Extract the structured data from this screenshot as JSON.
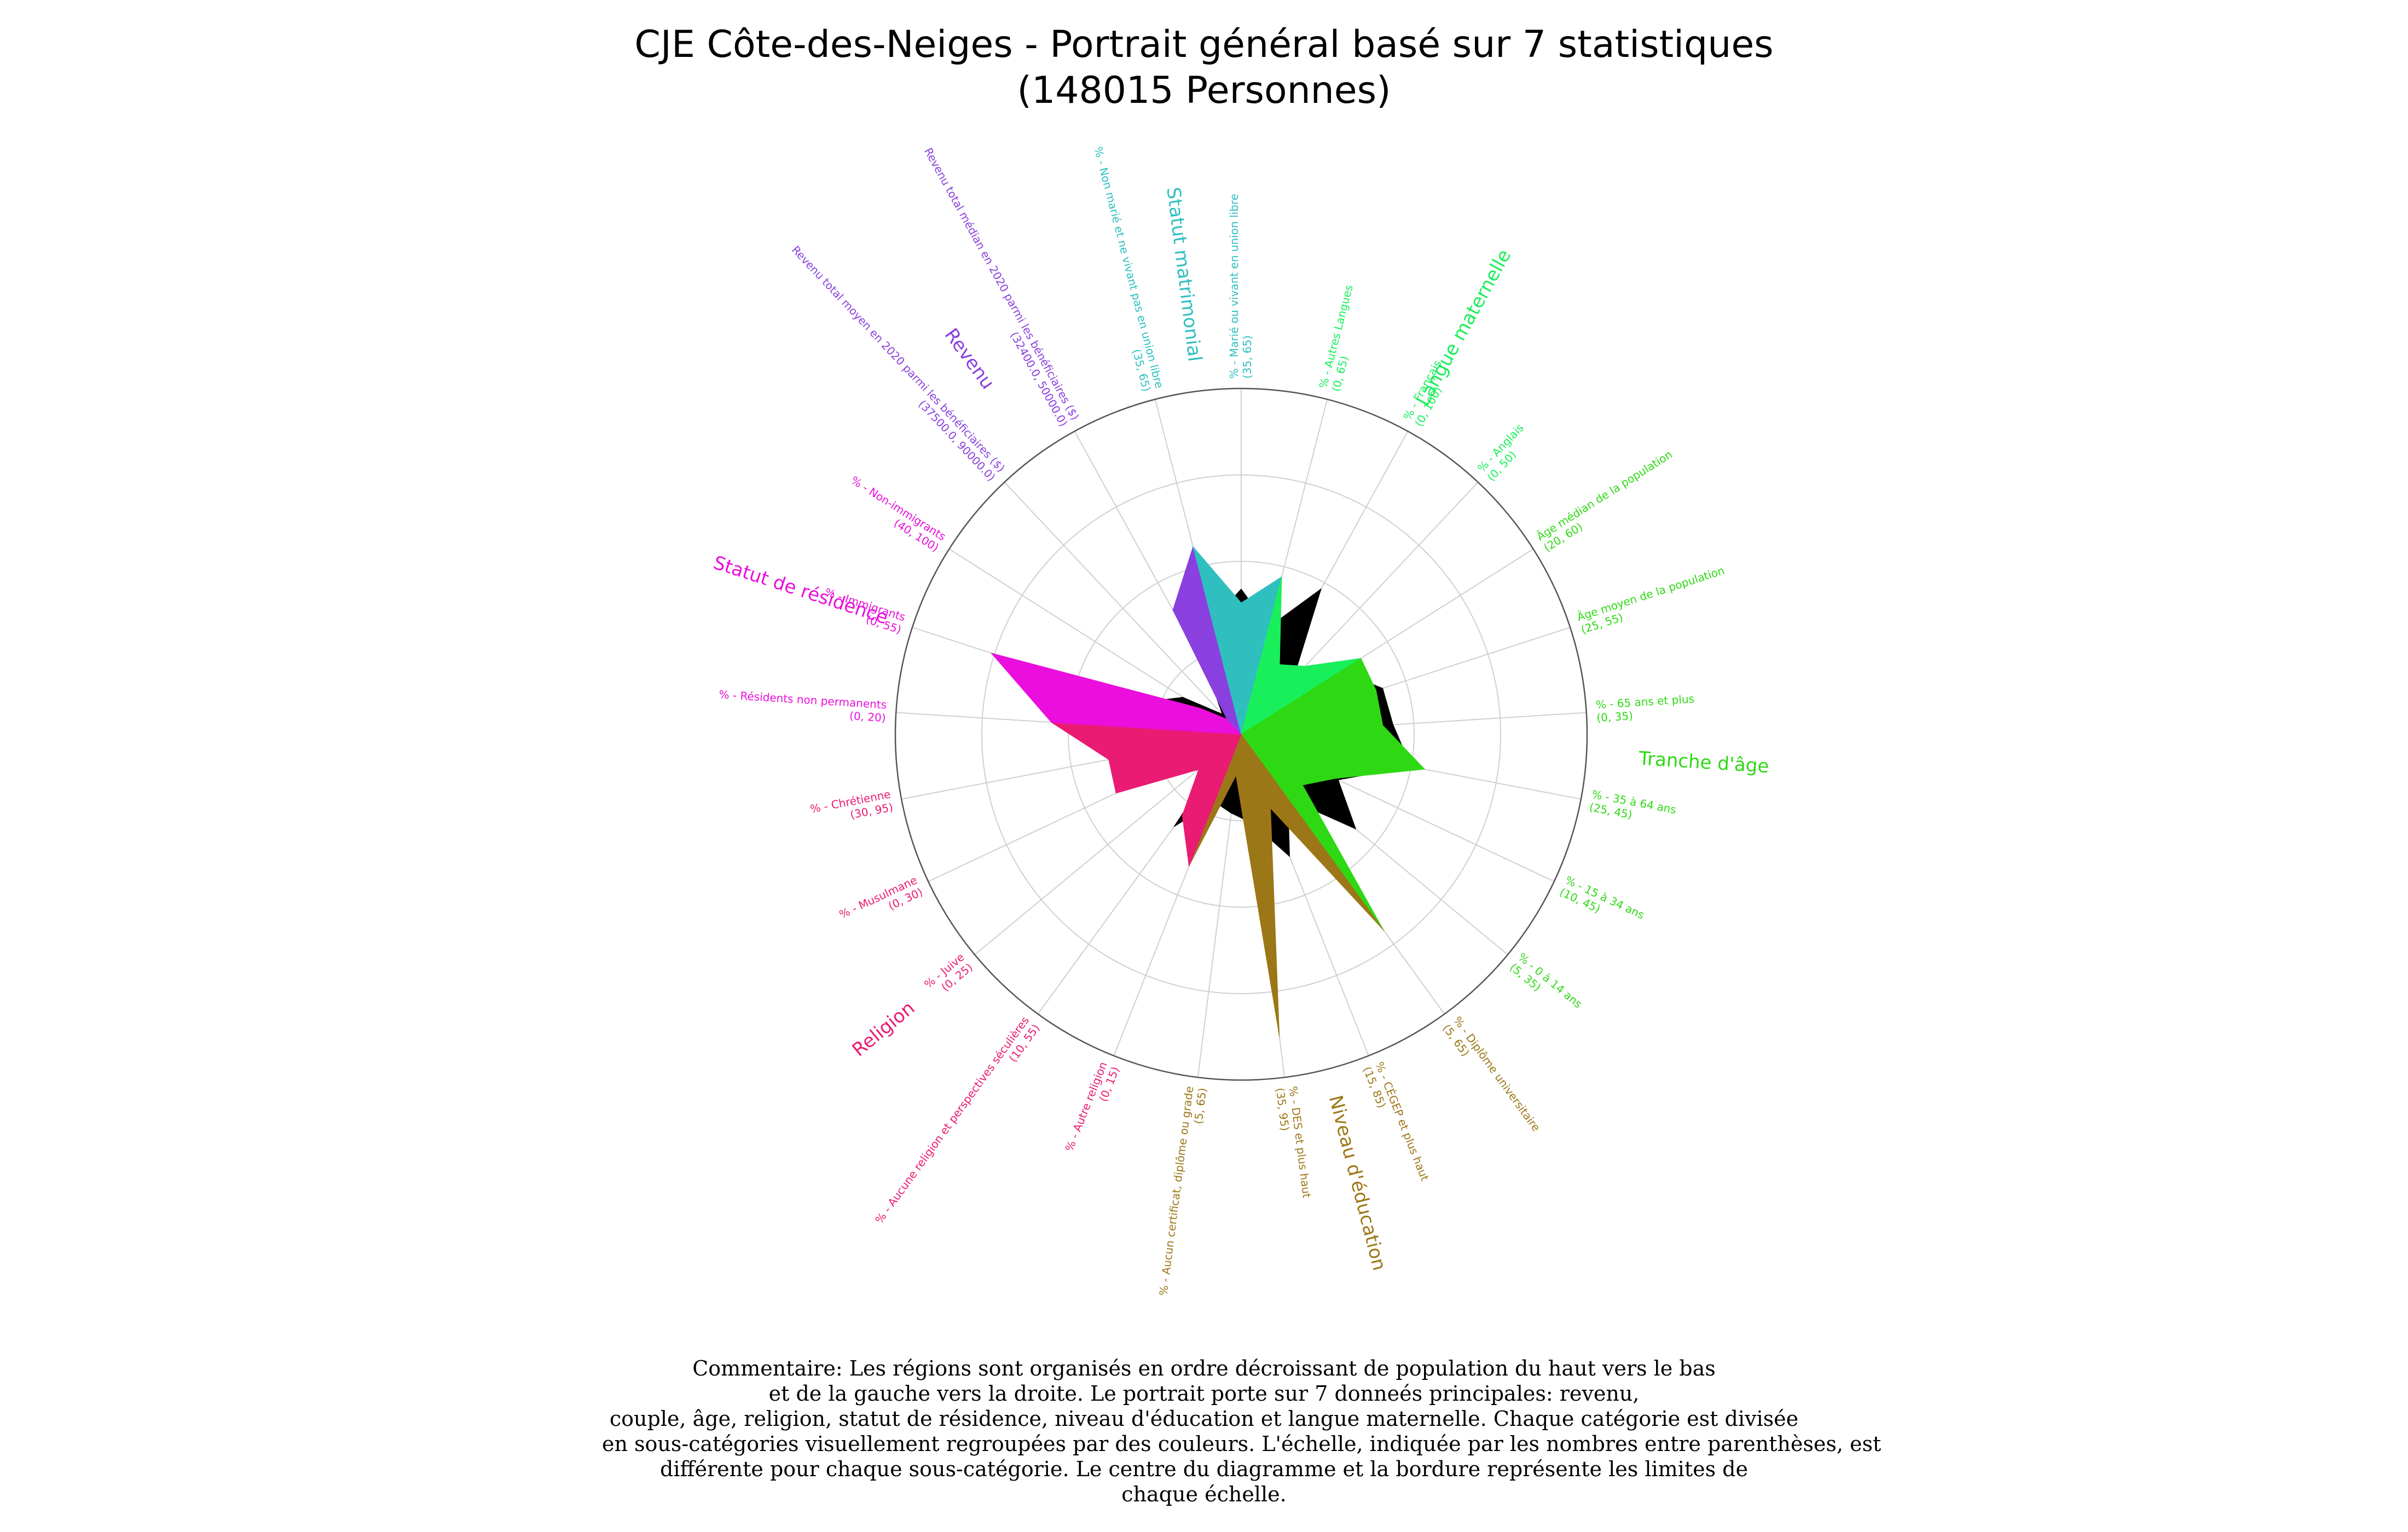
{
  "title_line1": "CJE Côte-des-Neiges - Portrait général basé sur 7 statistiques",
  "title_line2": "(148015 Personnes)",
  "commentary_lines": [
    "Commentaire: Les régions sont organisés en ordre décroissant de population du haut vers le bas",
    "et de la gauche vers la droite. Le portrait porte sur 7 donneés principales: revenu,",
    "couple, âge, religion, statut de résidence, niveau d'éducation et langue maternelle. Chaque catégorie est divisée",
    "en sous-catégories visuellement regroupées par des couleurs. L'échelle, indiquée par les nombres entre parenthèses, est",
    "différente pour chaque sous-catégorie. Le centre du diagramme et la bordure représente les limites de",
    "chaque échelle."
  ],
  "chart_data": {
    "type": "radar",
    "grid": true,
    "radial_levels": 4,
    "reference_color": "#000000",
    "categories": [
      {
        "name": "Statut matrimonial",
        "color": "#2fbfbf"
      },
      {
        "name": "Langue maternelle",
        "color": "#19ef5a"
      },
      {
        "name": "Tranche d'âge",
        "color": "#2ed914"
      },
      {
        "name": "Niveau d'éducation",
        "color": "#9c7717"
      },
      {
        "name": "Religion",
        "color": "#ea1b72"
      },
      {
        "name": "Statut de résidence",
        "color": "#ea0fdc"
      },
      {
        "name": "Revenu",
        "color": "#8a40df"
      }
    ],
    "axes": [
      {
        "label": "% - Marié ou vivant en union libre",
        "range": "(35, 65)",
        "category": "Statut matrimonial",
        "value": 0.38,
        "reference": 0.42
      },
      {
        "label": "% - Autres Langues",
        "range": "(0, 65)",
        "category": "Langue maternelle",
        "value": 0.47,
        "reference": 0.32
      },
      {
        "label": "% - Français",
        "range": "(0, 100)",
        "category": "Langue maternelle",
        "value": 0.23,
        "reference": 0.48
      },
      {
        "label": "% - Anglais",
        "range": "(0, 50)",
        "category": "Langue maternelle",
        "value": 0.27,
        "reference": 0.22
      },
      {
        "label": "Âge médian de la population",
        "range": "(20, 60)",
        "category": "Tranche d'âge",
        "value": 0.41,
        "reference": 0.34
      },
      {
        "label": "Âge moyen de la population",
        "range": "(25, 55)",
        "category": "Tranche d'âge",
        "value": 0.41,
        "reference": 0.43
      },
      {
        "label": "% - 65 ans et plus",
        "range": "(0, 35)",
        "category": "Tranche d'âge",
        "value": 0.41,
        "reference": 0.44
      },
      {
        "label": "% - 35 à 64 ans",
        "range": "(25, 45)",
        "category": "Tranche d'âge",
        "value": 0.54,
        "reference": 0.5
      },
      {
        "label": "% - 15 à 34 ans",
        "range": "(10, 45)",
        "category": "Tranche d'âge",
        "value": 0.3,
        "reference": 0.31
      },
      {
        "label": "% - 0 à 14 ans",
        "range": "(5, 35)",
        "category": "Tranche d'âge",
        "value": 0.23,
        "reference": 0.43
      },
      {
        "label": "% - Diplôme universitaire",
        "range": "(5, 65)",
        "category": "Niveau d'éducation",
        "value": 0.7,
        "reference": 0.23
      },
      {
        "label": "% - CÉGEP et plus haut",
        "range": "(15, 85)",
        "category": "Niveau d'éducation",
        "value": 0.23,
        "reference": 0.38
      },
      {
        "label": "% - DES et plus haut",
        "range": "(35, 95)",
        "category": "Niveau d'éducation",
        "value": 0.88,
        "reference": 0.26
      },
      {
        "label": "% - Aucun certificat, diplôme ou grade",
        "range": "(5, 65)",
        "category": "Niveau d'éducation",
        "value": 0.12,
        "reference": 0.23
      },
      {
        "label": "% - Autre religion",
        "range": "(0, 15)",
        "category": "Religion",
        "value": 0.41,
        "reference": 0.21
      },
      {
        "label": "% - Aucune religion et perspectives séculières",
        "range": "(10, 55)",
        "category": "Religion",
        "value": 0.29,
        "reference": 0.33
      },
      {
        "label": "% - Juive",
        "range": "(0, 25)",
        "category": "Religion",
        "value": 0.16,
        "reference": 0.06
      },
      {
        "label": "% - Musulmane",
        "range": "(0, 30)",
        "category": "Religion",
        "value": 0.4,
        "reference": 0.06
      },
      {
        "label": "% - Chrétienne",
        "range": "(30, 95)",
        "category": "Religion",
        "value": 0.39,
        "reference": 0.1
      },
      {
        "label": "% - Résidents non permanents",
        "range": "(0, 20)",
        "category": "Statut de résidence",
        "value": 0.55,
        "reference": 0.23
      },
      {
        "label": "% - Immigrants",
        "range": "(0, 55)",
        "category": "Statut de résidence",
        "value": 0.76,
        "reference": 0.3
      },
      {
        "label": "% - Non-immigrants",
        "range": "(40, 100)",
        "category": "Statut de résidence",
        "value": 0.14,
        "reference": 0.2
      },
      {
        "label": "Revenu total moyen en 2020 parmi les bénéficiaires ($)",
        "range": "(37500.0, 90000.0)",
        "category": "Revenu",
        "value": 0.06,
        "reference": 0.08
      },
      {
        "label": "Revenu total médian en 2020 parmi les bénéficiaires ($)",
        "range": "(32400.0, 50000.0)",
        "category": "Revenu",
        "value": 0.41,
        "reference": 0.2
      },
      {
        "label": "% - Non marié et ne vivant pas en union libre",
        "range": "(35, 65)",
        "category": "Statut matrimonial",
        "value": 0.56,
        "reference": 0.34
      }
    ]
  }
}
